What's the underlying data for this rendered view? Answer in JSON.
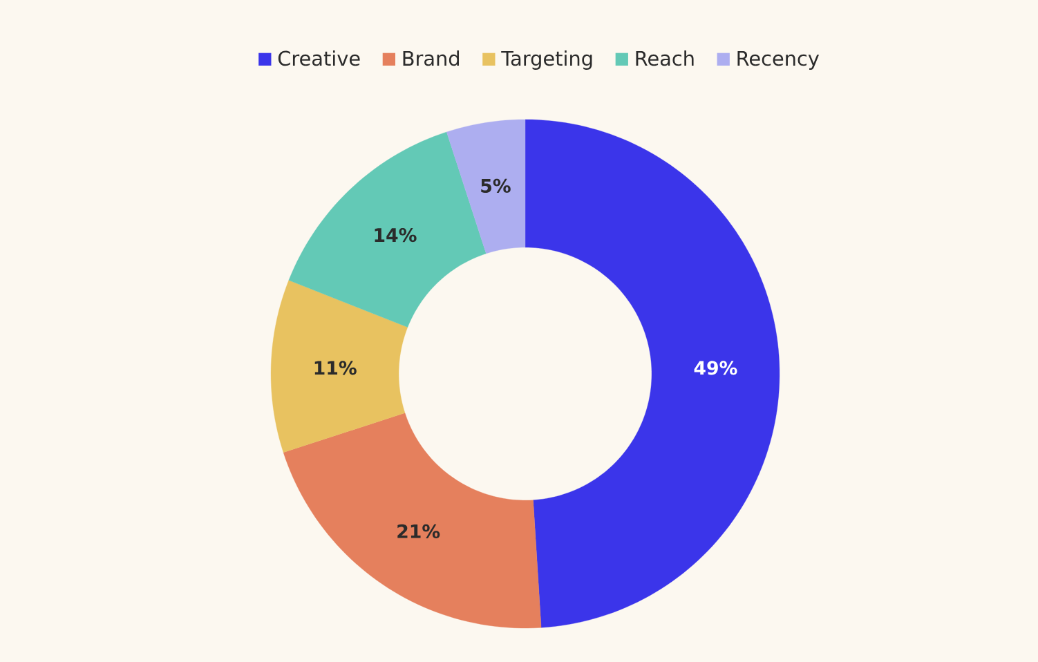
{
  "chart_data": {
    "type": "donut",
    "categories": [
      "Creative",
      "Brand",
      "Targeting",
      "Reach",
      "Recency"
    ],
    "values": [
      49,
      21,
      11,
      14,
      5
    ],
    "colors": [
      "#3b35ea",
      "#e5805d",
      "#e8c260",
      "#63c9b6",
      "#adaef0"
    ],
    "value_labels": [
      "49%",
      "21%",
      "11%",
      "14%",
      "5%"
    ],
    "legend": "top"
  }
}
